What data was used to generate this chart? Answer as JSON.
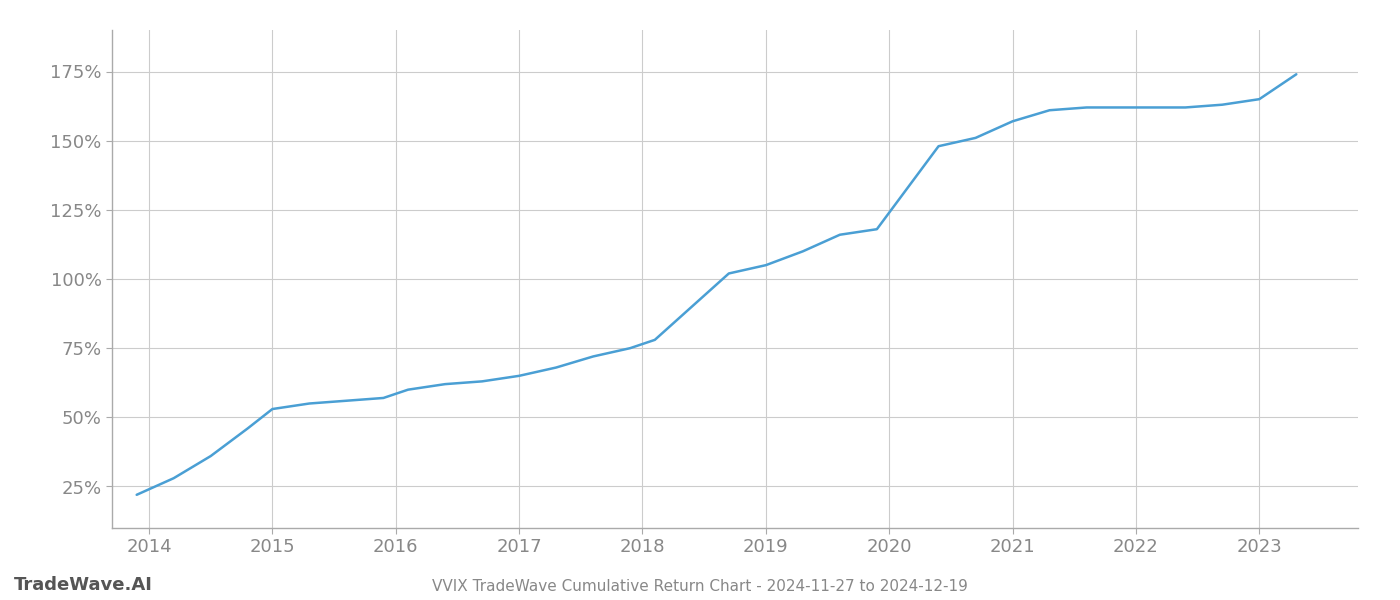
{
  "title": "VVIX TradeWave Cumulative Return Chart - 2024-11-27 to 2024-12-19",
  "watermark": "TradeWave.AI",
  "line_color": "#4a9fd4",
  "background_color": "#ffffff",
  "grid_color": "#cccccc",
  "x_years": [
    2014,
    2015,
    2016,
    2017,
    2018,
    2019,
    2020,
    2021,
    2022,
    2023
  ],
  "x_values": [
    2013.9,
    2014.2,
    2014.5,
    2014.8,
    2015.0,
    2015.3,
    2015.6,
    2015.9,
    2016.1,
    2016.4,
    2016.7,
    2017.0,
    2017.3,
    2017.6,
    2017.9,
    2018.1,
    2018.4,
    2018.7,
    2019.0,
    2019.3,
    2019.6,
    2019.9,
    2020.1,
    2020.4,
    2020.7,
    2021.0,
    2021.3,
    2021.6,
    2021.9,
    2022.1,
    2022.4,
    2022.7,
    2023.0,
    2023.3
  ],
  "y_values": [
    22,
    28,
    36,
    46,
    53,
    55,
    56,
    57,
    60,
    62,
    63,
    65,
    68,
    72,
    75,
    78,
    90,
    102,
    105,
    110,
    116,
    118,
    130,
    148,
    151,
    157,
    161,
    162,
    162,
    162,
    162,
    163,
    165,
    174
  ],
  "ylim": [
    10,
    190
  ],
  "yticks": [
    25,
    50,
    75,
    100,
    125,
    150,
    175
  ],
  "xlim": [
    2013.7,
    2023.8
  ],
  "title_fontsize": 11,
  "tick_fontsize": 13,
  "watermark_fontsize": 13
}
